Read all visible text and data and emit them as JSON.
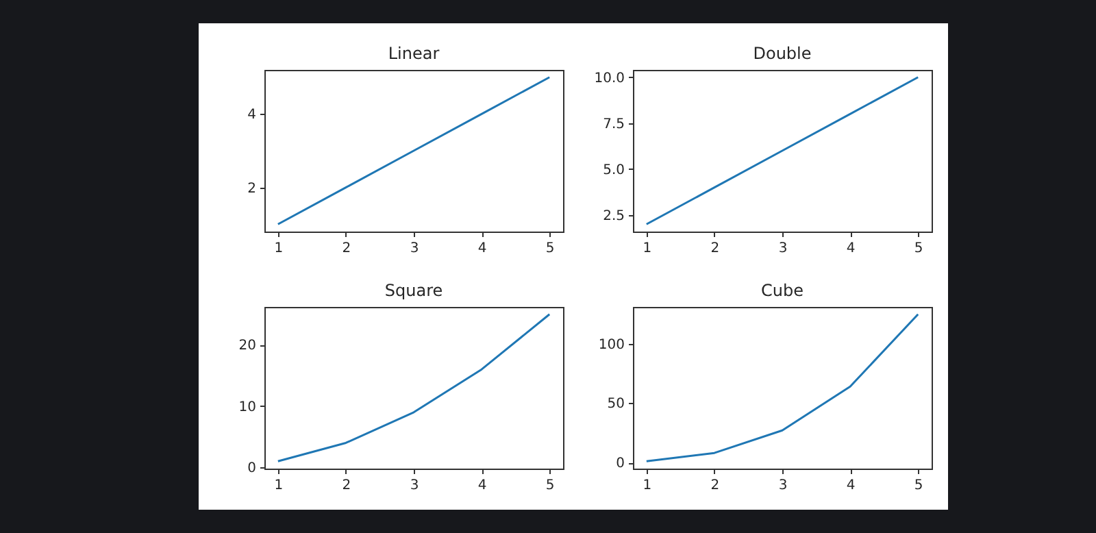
{
  "chart_data": [
    {
      "type": "line",
      "title": "Linear",
      "x": [
        1,
        2,
        3,
        4,
        5
      ],
      "values": [
        1,
        2,
        3,
        4,
        5
      ],
      "color": "#1f77b4",
      "xlim": [
        0.8,
        5.2
      ],
      "xticks": [
        1,
        2,
        3,
        4,
        5
      ],
      "ylim": [
        0.8,
        5.2
      ],
      "yticks": [
        2,
        4
      ],
      "grid": false
    },
    {
      "type": "line",
      "title": "Double",
      "x": [
        1,
        2,
        3,
        4,
        5
      ],
      "values": [
        2,
        4,
        6,
        8,
        10
      ],
      "color": "#1f77b4",
      "xlim": [
        0.8,
        5.2
      ],
      "xticks": [
        1,
        2,
        3,
        4,
        5
      ],
      "ylim": [
        1.6,
        10.4
      ],
      "yticks": [
        2.5,
        {
          "value": 5,
          "label": "5.0"
        },
        7.5,
        {
          "value": 10,
          "label": "10.0"
        }
      ],
      "grid": false
    },
    {
      "type": "line",
      "title": "Square",
      "x": [
        1,
        2,
        3,
        4,
        5
      ],
      "values": [
        1,
        4,
        9,
        16,
        25
      ],
      "color": "#1f77b4",
      "xlim": [
        0.8,
        5.2
      ],
      "xticks": [
        1,
        2,
        3,
        4,
        5
      ],
      "ylim": [
        -0.2,
        26.2
      ],
      "yticks": [
        0,
        10,
        20
      ],
      "grid": false
    },
    {
      "type": "line",
      "title": "Cube",
      "x": [
        1,
        2,
        3,
        4,
        5
      ],
      "values": [
        1,
        8,
        27,
        64,
        125
      ],
      "color": "#1f77b4",
      "xlim": [
        0.8,
        5.2
      ],
      "xticks": [
        1,
        2,
        3,
        4,
        5
      ],
      "ylim": [
        -5.2,
        131.2
      ],
      "yticks": [
        0,
        50,
        100
      ],
      "grid": false
    }
  ]
}
